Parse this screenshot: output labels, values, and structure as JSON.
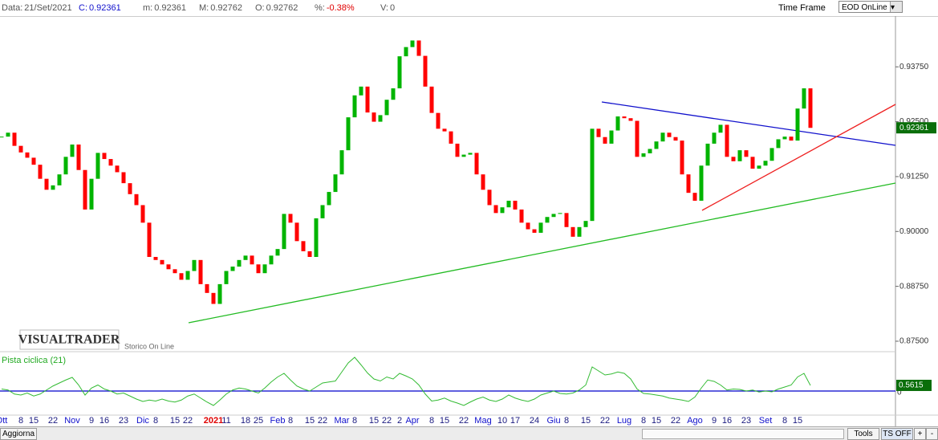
{
  "header": {
    "items": [
      {
        "label": "Data:",
        "value": "21/Set/2021"
      },
      {
        "label": "C:",
        "value": "0.92361"
      },
      {
        "label": "m:",
        "value": "0.92361"
      },
      {
        "label": "M:",
        "value": "0.92762"
      },
      {
        "label": "O:",
        "value": "0.92762"
      },
      {
        "label": "%:",
        "value": "-0.38%"
      },
      {
        "label": "V:",
        "value": "0"
      }
    ],
    "time_frame_label": "Time Frame",
    "time_frame_value": "EOD OnLine"
  },
  "chart_data": {
    "type": "candlestick",
    "categories": [
      "Ott",
      null,
      null,
      "8",
      null,
      "15",
      null,
      null,
      "22",
      null,
      null,
      "Nov",
      null,
      null,
      "9",
      null,
      "16",
      null,
      null,
      "23",
      null,
      null,
      "Dic",
      null,
      "8",
      null,
      null,
      "15",
      null,
      "22",
      null,
      null,
      null,
      "2021",
      null,
      "11",
      null,
      null,
      "18",
      null,
      "25",
      null,
      null,
      "Feb",
      null,
      "8",
      null,
      null,
      "15",
      null,
      "22",
      null,
      null,
      "Mar",
      null,
      "8",
      null,
      null,
      "15",
      null,
      "22",
      null,
      "2",
      null,
      "Apr",
      null,
      null,
      "8",
      null,
      "15",
      null,
      null,
      "22",
      null,
      null,
      "Mag",
      null,
      null,
      "10",
      null,
      "17",
      null,
      null,
      "24",
      null,
      null,
      "Giu",
      null,
      "8",
      null,
      null,
      "15",
      null,
      null,
      "22",
      null,
      null,
      "Lug",
      null,
      null,
      "8",
      null,
      "15",
      null,
      null,
      "22",
      null,
      null,
      "Ago",
      null,
      null,
      "9",
      null,
      "16",
      null,
      null,
      "23",
      null,
      null,
      "Set",
      null,
      null,
      "8",
      null,
      "15",
      null,
      null
    ],
    "close": [
      0.9216,
      0.9225,
      0.9195,
      0.918,
      0.9168,
      0.9152,
      0.912,
      0.9095,
      0.9105,
      0.913,
      0.917,
      0.9198,
      0.914,
      0.905,
      0.912,
      0.9179,
      0.9165,
      0.915,
      0.9135,
      0.911,
      0.9085,
      0.906,
      0.902,
      0.8942,
      0.8935,
      0.8925,
      0.8914,
      0.8905,
      0.889,
      0.891,
      0.8935,
      0.888,
      0.886,
      0.8835,
      0.888,
      0.891,
      0.892,
      0.8935,
      0.8945,
      0.8925,
      0.8905,
      0.8925,
      0.8945,
      0.896,
      0.904,
      0.902,
      0.8978,
      0.8955,
      0.8942,
      0.903,
      0.906,
      0.909,
      0.913,
      0.9185,
      0.926,
      0.931,
      0.933,
      0.9271,
      0.925,
      0.9265,
      0.93,
      0.9326,
      0.9399,
      0.942,
      0.9435,
      0.94,
      0.933,
      0.927,
      0.9234,
      0.9228,
      0.92,
      0.917,
      0.9175,
      0.9179,
      0.913,
      0.9095,
      0.906,
      0.9042,
      0.9055,
      0.907,
      0.905,
      0.902,
      0.9005,
      0.8997,
      0.902,
      0.9033,
      0.904,
      0.9042,
      0.901,
      0.8988,
      0.901,
      0.9024,
      0.9234,
      0.9215,
      0.92,
      0.923,
      0.9262,
      0.9258,
      0.9252,
      0.917,
      0.9178,
      0.9188,
      0.9205,
      0.9225,
      0.9215,
      0.9207,
      0.913,
      0.9088,
      0.907,
      0.915,
      0.92,
      0.9225,
      0.9243,
      0.917,
      0.916,
      0.9185,
      0.917,
      0.9143,
      0.915,
      0.9161,
      0.919,
      0.921,
      0.9216,
      0.9207,
      0.928,
      0.9326,
      0.9236
    ],
    "up_color": "#00b400",
    "down_color": "#ff0000",
    "ylim": [
      0.8728,
      0.9487
    ],
    "yticks": [
      {
        "value": 0.875,
        "label": "0.87500"
      },
      {
        "value": 0.8875,
        "label": "0.88750"
      },
      {
        "value": 0.9,
        "label": "0.90000"
      },
      {
        "value": 0.9125,
        "label": "0.91250"
      },
      {
        "value": 0.925,
        "label": "0.92500"
      },
      {
        "value": 0.9375,
        "label": "0.93750"
      }
    ],
    "price_marker": 0.92361,
    "oscillator": {
      "title": "Pista ciclica (21)",
      "color": "#33bb33",
      "values": [
        0.2,
        0.1,
        -0.3,
        -0.4,
        -0.2,
        -0.5,
        -0.3,
        0.1,
        0.5,
        0.8,
        1.1,
        1.36,
        0.6,
        -0.4,
        0.3,
        0.6,
        0.2,
        0,
        -0.3,
        -0.2,
        -0.5,
        -0.8,
        -1.04,
        -0.9,
        -1.0,
        -0.8,
        -1.0,
        -1.1,
        -0.9,
        -0.5,
        -0.3,
        -0.7,
        -1.1,
        -1.44,
        -0.9,
        -0.3,
        0.1,
        0.3,
        0.2,
        0,
        -0.2,
        0.3,
        0.9,
        1.4,
        1.76,
        1.1,
        0.5,
        0.2,
        0,
        0.4,
        0.8,
        0.9,
        1.0,
        1.9,
        2.8,
        3.36,
        2.6,
        1.8,
        1.2,
        1.0,
        1.4,
        1.2,
        1.76,
        1.5,
        1.2,
        0.6,
        -0.3,
        -1.0,
        -0.9,
        -0.7,
        -1.0,
        -1.2,
        -1.44,
        -1.1,
        -0.8,
        -0.6,
        -0.9,
        -1.04,
        -0.8,
        -0.4,
        -0.7,
        -0.9,
        -1.04,
        -0.8,
        -0.4,
        -0.2,
        0,
        -0.24,
        -0.3,
        -0.2,
        0.1,
        0.6,
        2.4,
        2.0,
        1.6,
        1.7,
        1.9,
        1.76,
        1.2,
        0.2,
        -0.24,
        -0.3,
        -0.4,
        -0.5,
        -0.7,
        -0.8,
        -0.9,
        -1.04,
        -0.6,
        0.3,
        1.1,
        0.96,
        0.6,
        0.1,
        0.2,
        0.16,
        0,
        0.1,
        -0.1,
        0,
        -0.08,
        0.2,
        0.4,
        0.6,
        1.4,
        1.76,
        0.5615
      ],
      "ylim": [
        -2.64,
        3.76
      ],
      "yticks": [
        0
      ],
      "zero_line_color": "#0000cc",
      "marker": 0.5615
    }
  },
  "branding": {
    "logo": "VISUALTRADER",
    "subtitle": "Storico On Line"
  },
  "footer": {
    "refresh": "Aggiorna",
    "tools": "Tools",
    "ts": "TS OFF",
    "plus": "+",
    "minus": "-"
  }
}
